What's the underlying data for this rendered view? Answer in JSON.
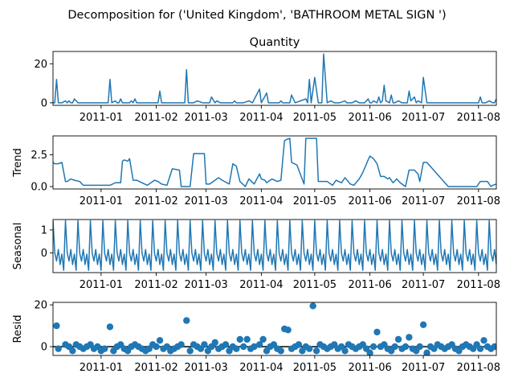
{
  "suptitle": "Decomposition for ('United Kingdom', 'BATHROOM METAL SIGN ')",
  "x_ticks": [
    "2011-01",
    "2011-02",
    "2011-03",
    "2011-04",
    "2011-05",
    "2011-06",
    "2011-07",
    "2011-08"
  ],
  "colors": {
    "line": "#1f77b4",
    "axis": "#000000",
    "zero_line": "#000000"
  },
  "chart_data": [
    {
      "type": "line",
      "title": "Quantity",
      "ylabel": "",
      "xlim": [
        "2010-12-05",
        "2011-08-11"
      ],
      "ylim": [
        -1.3,
        26.3
      ],
      "yticks": [
        0,
        20
      ],
      "x": [
        "2010-12-05",
        "2010-12-06",
        "2010-12-07",
        "2010-12-08",
        "2010-12-09",
        "2010-12-10",
        "2010-12-12",
        "2010-12-13",
        "2010-12-14",
        "2010-12-15",
        "2010-12-16",
        "2010-12-17",
        "2010-12-19",
        "2010-12-20",
        "2010-12-21",
        "2010-12-22",
        "2010-12-23",
        "2011-01-04",
        "2011-01-05",
        "2011-01-06",
        "2011-01-07",
        "2011-01-09",
        "2011-01-10",
        "2011-01-11",
        "2011-01-12",
        "2011-01-13",
        "2011-01-14",
        "2011-01-16",
        "2011-01-17",
        "2011-01-18",
        "2011-01-19",
        "2011-01-20",
        "2011-01-21",
        "2011-01-23",
        "2011-01-24",
        "2011-01-25",
        "2011-02-01",
        "2011-02-02",
        "2011-02-03",
        "2011-02-04",
        "2011-02-06",
        "2011-02-07",
        "2011-02-10",
        "2011-02-15",
        "2011-02-16",
        "2011-02-17",
        "2011-02-18",
        "2011-02-19",
        "2011-02-20",
        "2011-02-21",
        "2011-02-22",
        "2011-02-24",
        "2011-02-27",
        "2011-02-28",
        "2011-03-01",
        "2011-03-03",
        "2011-03-04",
        "2011-03-06",
        "2011-03-07",
        "2011-03-09",
        "2011-03-10",
        "2011-03-16",
        "2011-03-17",
        "2011-03-18",
        "2011-03-20",
        "2011-03-21",
        "2011-03-22",
        "2011-03-25",
        "2011-03-27",
        "2011-03-31",
        "2011-04-01",
        "2011-04-04",
        "2011-04-05",
        "2011-04-06",
        "2011-04-07",
        "2011-04-11",
        "2011-04-12",
        "2011-04-13",
        "2011-04-14",
        "2011-04-15",
        "2011-04-17",
        "2011-04-18",
        "2011-04-20",
        "2011-04-26",
        "2011-04-27",
        "2011-04-28",
        "2011-04-29",
        "2011-05-01",
        "2011-05-03",
        "2011-05-05",
        "2011-05-06",
        "2011-05-08",
        "2011-05-10",
        "2011-05-12",
        "2011-05-15",
        "2011-05-18",
        "2011-05-19",
        "2011-05-22",
        "2011-05-24",
        "2011-05-26",
        "2011-05-29",
        "2011-05-31",
        "2011-06-01",
        "2011-06-02",
        "2011-06-03",
        "2011-06-05",
        "2011-06-06",
        "2011-06-07",
        "2011-06-08",
        "2011-06-09",
        "2011-06-10",
        "2011-06-12",
        "2011-06-13",
        "2011-06-14",
        "2011-06-15",
        "2011-06-17",
        "2011-06-19",
        "2011-06-20",
        "2011-06-21",
        "2011-06-22",
        "2011-06-23",
        "2011-06-24",
        "2011-06-26",
        "2011-06-27",
        "2011-06-28",
        "2011-06-30",
        "2011-07-01",
        "2011-07-03",
        "2011-07-05",
        "2011-07-08",
        "2011-07-12",
        "2011-07-15",
        "2011-07-19",
        "2011-07-22",
        "2011-07-26",
        "2011-07-29",
        "2011-07-31",
        "2011-08-01",
        "2011-08-02",
        "2011-08-03",
        "2011-08-05",
        "2011-08-07",
        "2011-08-09",
        "2011-08-10",
        "2011-08-11"
      ],
      "values": [
        0,
        0,
        12,
        0,
        0,
        0,
        1,
        0,
        1,
        0,
        0,
        2,
        0,
        0,
        0,
        0,
        0,
        0,
        0,
        12,
        0,
        1,
        0,
        0,
        2,
        0,
        0,
        0,
        0,
        1,
        0,
        2,
        0,
        0,
        0,
        0,
        0,
        0,
        6,
        0,
        0,
        0,
        0,
        0,
        0,
        0,
        17,
        0,
        0,
        0,
        0,
        1,
        0,
        0,
        0,
        0,
        3,
        0,
        1,
        0,
        0,
        0,
        1,
        0,
        0,
        0,
        0,
        1,
        0,
        7,
        0,
        5,
        0,
        0,
        0,
        0,
        1,
        0,
        0,
        0,
        0,
        4,
        0,
        2,
        0,
        12,
        0,
        13,
        0,
        0,
        25,
        0,
        1,
        0,
        0,
        1,
        0,
        0,
        1,
        0,
        0,
        2,
        0,
        0,
        1,
        0,
        3,
        0,
        1,
        9,
        1,
        0,
        4,
        0,
        0,
        1,
        0,
        0,
        0,
        0,
        6,
        1,
        3,
        0,
        1,
        0,
        13,
        0,
        0,
        0,
        0,
        0,
        0,
        0,
        0,
        0,
        0,
        0,
        3,
        0,
        0,
        1,
        0,
        0,
        2
      ]
    },
    {
      "type": "line",
      "title": "",
      "ylabel": "Trend",
      "xlim": [
        "2010-12-05",
        "2011-08-11"
      ],
      "ylim": [
        -0.19,
        3.99
      ],
      "yticks": [
        0.0,
        2.5
      ],
      "x": [
        "2010-12-05",
        "2010-12-06",
        "2010-12-08",
        "2010-12-10",
        "2010-12-12",
        "2010-12-13",
        "2010-12-15",
        "2010-12-17",
        "2010-12-20",
        "2010-12-22",
        "2011-01-04",
        "2011-01-06",
        "2011-01-09",
        "2011-01-12",
        "2011-01-13",
        "2011-01-14",
        "2011-01-16",
        "2011-01-17",
        "2011-01-19",
        "2011-01-21",
        "2011-01-24",
        "2011-01-27",
        "2011-01-31",
        "2011-02-02",
        "2011-02-04",
        "2011-02-07",
        "2011-02-10",
        "2011-02-14",
        "2011-02-15",
        "2011-02-17",
        "2011-02-20",
        "2011-02-22",
        "2011-02-24",
        "2011-02-28",
        "2011-03-01",
        "2011-03-03",
        "2011-03-06",
        "2011-03-08",
        "2011-03-10",
        "2011-03-14",
        "2011-03-16",
        "2011-03-18",
        "2011-03-20",
        "2011-03-23",
        "2011-03-25",
        "2011-03-28",
        "2011-03-31",
        "2011-04-01",
        "2011-04-03",
        "2011-04-04",
        "2011-04-07",
        "2011-04-10",
        "2011-04-12",
        "2011-04-14",
        "2011-04-15",
        "2011-04-17",
        "2011-04-18",
        "2011-04-21",
        "2011-04-25",
        "2011-04-26",
        "2011-04-29",
        "2011-05-02",
        "2011-05-03",
        "2011-05-06",
        "2011-05-08",
        "2011-05-11",
        "2011-05-13",
        "2011-05-16",
        "2011-05-18",
        "2011-05-21",
        "2011-05-23",
        "2011-05-26",
        "2011-05-28",
        "2011-05-31",
        "2011-06-01",
        "2011-06-03",
        "2011-06-05",
        "2011-06-07",
        "2011-06-09",
        "2011-06-11",
        "2011-06-12",
        "2011-06-14",
        "2011-06-16",
        "2011-06-18",
        "2011-06-21",
        "2011-06-23",
        "2011-06-24",
        "2011-06-26",
        "2011-06-28",
        "2011-06-29",
        "2011-07-01",
        "2011-07-03",
        "2011-07-15",
        "2011-07-30",
        "2011-07-31",
        "2011-08-02",
        "2011-08-04",
        "2011-08-06",
        "2011-08-08",
        "2011-08-09",
        "2011-08-11"
      ],
      "values": [
        1.9,
        1.8,
        1.8,
        1.9,
        0.4,
        0.4,
        0.6,
        0.5,
        0.4,
        0.1,
        0.1,
        0.1,
        0.3,
        0.3,
        2.0,
        2.1,
        2.0,
        2.2,
        0.5,
        0.5,
        0.3,
        0.1,
        0.5,
        0.4,
        0.2,
        0.1,
        1.4,
        1.3,
        0.0,
        0.0,
        0.0,
        2.6,
        2.6,
        2.6,
        0.2,
        0.2,
        0.5,
        0.7,
        0.5,
        0.2,
        1.8,
        1.6,
        0.4,
        0.0,
        0.6,
        0.2,
        1.0,
        0.6,
        0.5,
        0.3,
        0.6,
        0.4,
        0.5,
        3.6,
        3.7,
        3.8,
        1.9,
        1.7,
        0.2,
        3.8,
        3.8,
        3.8,
        0.4,
        0.4,
        0.4,
        0.1,
        0.5,
        0.3,
        0.7,
        0.2,
        0.1,
        0.6,
        1.1,
        2.1,
        2.4,
        2.2,
        1.8,
        0.8,
        0.8,
        0.6,
        0.7,
        0.3,
        0.6,
        0.3,
        0.0,
        1.3,
        1.3,
        1.3,
        1.0,
        0.4,
        1.9,
        1.9,
        0.0,
        0.0,
        0.0,
        0.4,
        0.4,
        0.4,
        0.0,
        0.1,
        0.2
      ]
    },
    {
      "type": "line",
      "title": "",
      "ylabel": "Seasonal",
      "xlim": [
        "2010-12-05",
        "2011-08-11"
      ],
      "ylim": [
        -0.85,
        1.45
      ],
      "yticks": [
        0,
        1
      ],
      "period_days": 7,
      "x_start": "2010-12-05",
      "x_end": "2011-08-11",
      "pattern": [
        1.4,
        0.0,
        -0.35,
        0.15,
        -0.5,
        -0.05,
        -0.75
      ]
    },
    {
      "type": "scatter",
      "title": "",
      "ylabel": "Resid",
      "xlim": [
        "2010-12-05",
        "2011-08-11"
      ],
      "ylim": [
        -4.2,
        21.2
      ],
      "yticks": [
        0,
        20
      ],
      "zero_line": true,
      "x": [
        "2010-12-07",
        "2010-12-08",
        "2010-12-12",
        "2010-12-14",
        "2010-12-16",
        "2010-12-18",
        "2010-12-20",
        "2010-12-22",
        "2010-12-24",
        "2010-12-26",
        "2010-12-28",
        "2010-12-30",
        "2011-01-01",
        "2011-01-03",
        "2011-01-06",
        "2011-01-08",
        "2011-01-10",
        "2011-01-12",
        "2011-01-14",
        "2011-01-16",
        "2011-01-18",
        "2011-01-20",
        "2011-01-22",
        "2011-01-24",
        "2011-01-26",
        "2011-01-28",
        "2011-01-30",
        "2011-02-01",
        "2011-02-03",
        "2011-02-05",
        "2011-02-07",
        "2011-02-09",
        "2011-02-11",
        "2011-02-13",
        "2011-02-15",
        "2011-02-18",
        "2011-02-20",
        "2011-02-22",
        "2011-02-24",
        "2011-02-26",
        "2011-02-28",
        "2011-03-02",
        "2011-03-04",
        "2011-03-06",
        "2011-03-08",
        "2011-03-10",
        "2011-03-12",
        "2011-03-14",
        "2011-03-16",
        "2011-03-18",
        "2011-03-20",
        "2011-03-22",
        "2011-03-24",
        "2011-03-26",
        "2011-03-28",
        "2011-03-31",
        "2011-04-02",
        "2011-04-04",
        "2011-04-06",
        "2011-04-08",
        "2011-04-10",
        "2011-04-12",
        "2011-04-14",
        "2011-04-16",
        "2011-04-18",
        "2011-04-20",
        "2011-04-22",
        "2011-04-24",
        "2011-04-26",
        "2011-04-28",
        "2011-04-30",
        "2011-05-02",
        "2011-05-04",
        "2011-05-06",
        "2011-05-08",
        "2011-05-10",
        "2011-05-12",
        "2011-05-14",
        "2011-05-16",
        "2011-05-18",
        "2011-05-20",
        "2011-05-22",
        "2011-05-24",
        "2011-05-26",
        "2011-05-28",
        "2011-05-30",
        "2011-06-01",
        "2011-06-03",
        "2011-06-05",
        "2011-06-07",
        "2011-06-09",
        "2011-06-11",
        "2011-06-13",
        "2011-06-15",
        "2011-06-17",
        "2011-06-19",
        "2011-06-21",
        "2011-06-23",
        "2011-06-25",
        "2011-06-27",
        "2011-06-29",
        "2011-07-01",
        "2011-07-03",
        "2011-07-05",
        "2011-07-07",
        "2011-07-09",
        "2011-07-11",
        "2011-07-13",
        "2011-07-15",
        "2011-07-17",
        "2011-07-19",
        "2011-07-21",
        "2011-07-23",
        "2011-07-25",
        "2011-07-27",
        "2011-07-29",
        "2011-07-31",
        "2011-08-02",
        "2011-08-04",
        "2011-08-06",
        "2011-08-08",
        "2011-08-10"
      ],
      "values": [
        10,
        -1,
        1,
        0,
        -2,
        1,
        0,
        -1,
        0,
        1,
        -1,
        0,
        -2,
        -1,
        9.5,
        -2,
        0,
        1,
        -1,
        -2,
        0,
        1,
        0,
        -1,
        -2,
        -1,
        1,
        0,
        3,
        -1,
        0,
        -2,
        -1,
        0,
        1,
        12.5,
        -2,
        1,
        0,
        -1,
        1,
        -2,
        0,
        2,
        -1,
        0,
        1,
        -2,
        0,
        -1,
        3.5,
        0,
        3.5,
        -1,
        0,
        1,
        3.5,
        -2,
        0,
        1,
        -1,
        -2,
        8.5,
        8,
        -1,
        0,
        1,
        -2,
        0,
        -1,
        19.5,
        -2,
        1,
        0,
        -1,
        0,
        1,
        -1,
        0,
        -2,
        1,
        0,
        -1,
        0,
        1,
        -1,
        -3,
        0,
        7,
        0,
        1,
        -1,
        -2,
        0,
        3.5,
        -1,
        0,
        4.5,
        -1,
        -2,
        0,
        10.5,
        -3,
        0,
        -1,
        1,
        0,
        -1,
        0,
        1,
        -1,
        -2,
        0,
        1,
        0,
        -1,
        1,
        -1,
        3,
        0,
        -1,
        0
      ]
    }
  ]
}
